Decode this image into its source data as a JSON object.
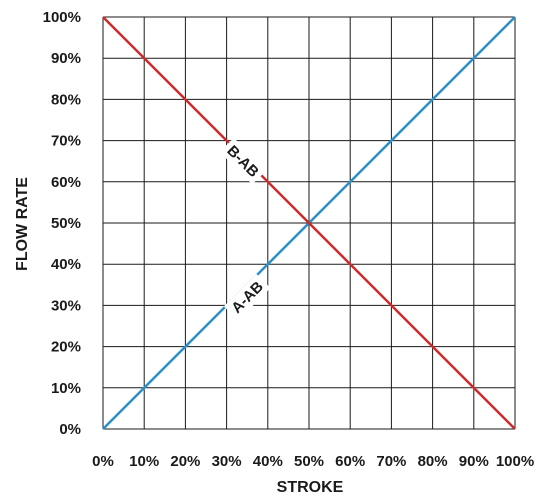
{
  "chart_data": {
    "type": "line",
    "title": "",
    "xlabel": "STROKE",
    "ylabel": "FLOW RATE",
    "xlim": [
      0,
      100
    ],
    "ylim": [
      0,
      100
    ],
    "x_tick_labels": [
      "0%",
      "10%",
      "20%",
      "30%",
      "40%",
      "50%",
      "60%",
      "70%",
      "80%",
      "90%",
      "100%"
    ],
    "y_tick_labels": [
      "0%",
      "10%",
      "20%",
      "30%",
      "40%",
      "50%",
      "60%",
      "70%",
      "80%",
      "90%",
      "100%"
    ],
    "grid": true,
    "series": [
      {
        "name": "A-AB",
        "color": "#2b8fc9",
        "x": [
          0,
          100
        ],
        "y": [
          0,
          100
        ]
      },
      {
        "name": "B-AB",
        "color": "#cc2b2b",
        "x": [
          0,
          100
        ],
        "y": [
          100,
          0
        ]
      }
    ]
  }
}
